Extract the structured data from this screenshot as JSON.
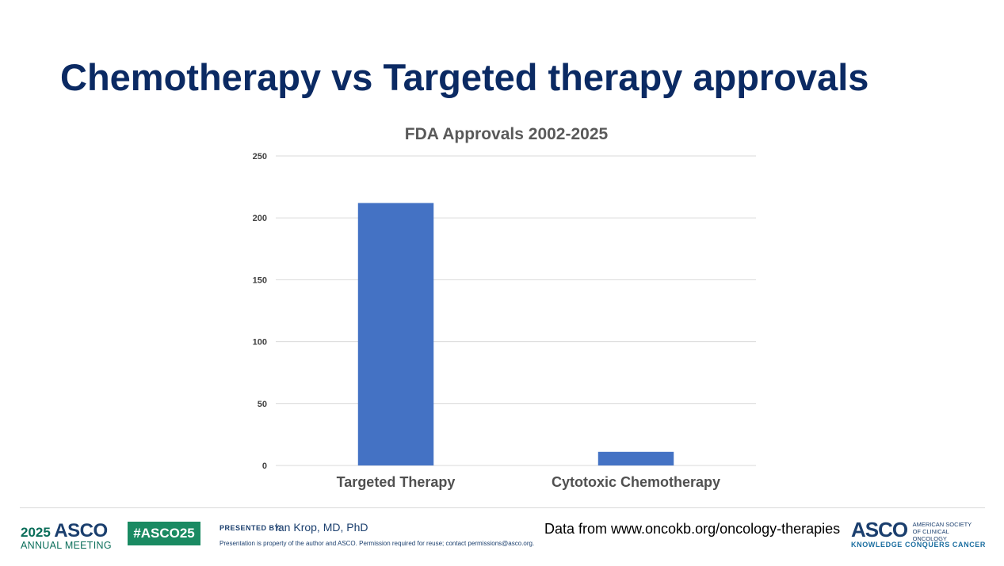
{
  "slide": {
    "title": "Chemotherapy vs Targeted therapy approvals"
  },
  "chart_data": {
    "type": "bar",
    "title": "FDA Approvals 2002-2025",
    "categories": [
      "Targeted Therapy",
      "Cytotoxic Chemotherapy"
    ],
    "values": [
      212,
      11
    ],
    "xlabel": "",
    "ylabel": "",
    "ylim": [
      0,
      250
    ],
    "yticks": [
      0,
      50,
      100,
      150,
      200,
      250
    ],
    "grid": true,
    "legend": "none",
    "bar_color": "#4472c4"
  },
  "footer": {
    "meeting_year": "2025",
    "meeting_name": "ASCO",
    "meeting_sub": "ANNUAL MEETING",
    "hashtag": "#ASCO25",
    "presented_by_label": "PRESENTED BY:",
    "presenter": "Ian Krop, MD, PhD",
    "disclaimer": "Presentation is property of the author and ASCO. Permission required for reuse; contact permissions@asco.org.",
    "source_note": "Data from www.oncokb.org/oncology-therapies",
    "asco_logo_word": "ASCO",
    "asco_org_name": "AMERICAN SOCIETY OF CLINICAL ONCOLOGY",
    "asco_tagline": "KNOWLEDGE CONQUERS CANCER"
  }
}
